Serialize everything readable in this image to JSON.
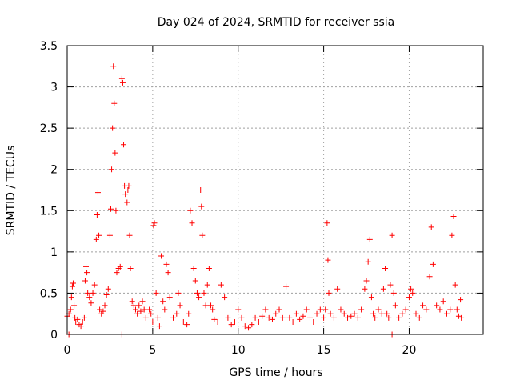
{
  "chart_data": {
    "type": "scatter",
    "title": "Day 024 of 2024, SRMTID for receiver ssia",
    "xlabel": "GPS time / hours",
    "ylabel": "SRMTID / TECUs",
    "xlim": [
      0,
      24.33
    ],
    "ylim": [
      0,
      3.5
    ],
    "x_ticks": [
      0,
      5,
      10,
      15,
      20
    ],
    "y_ticks": [
      0,
      0.5,
      1,
      1.5,
      2,
      2.5,
      3,
      3.5
    ],
    "grid": true,
    "marker": "plus",
    "series": [
      {
        "name": "SRMTID",
        "color": "#ff0000",
        "points": [
          [
            0.0,
            0.22
          ],
          [
            0.1,
            0.25
          ],
          [
            0.2,
            0.3
          ],
          [
            0.25,
            0.45
          ],
          [
            0.3,
            0.58
          ],
          [
            0.35,
            0.62
          ],
          [
            0.4,
            0.35
          ],
          [
            0.45,
            0.2
          ],
          [
            0.5,
            0.15
          ],
          [
            0.6,
            0.18
          ],
          [
            0.7,
            0.12
          ],
          [
            0.8,
            0.1
          ],
          [
            0.9,
            0.15
          ],
          [
            1.0,
            0.2
          ],
          [
            1.05,
            0.65
          ],
          [
            1.1,
            0.82
          ],
          [
            1.15,
            0.75
          ],
          [
            1.2,
            0.5
          ],
          [
            1.3,
            0.45
          ],
          [
            1.4,
            0.38
          ],
          [
            1.5,
            0.5
          ],
          [
            1.6,
            0.6
          ],
          [
            1.7,
            1.15
          ],
          [
            1.75,
            1.45
          ],
          [
            1.8,
            1.72
          ],
          [
            1.85,
            1.2
          ],
          [
            1.9,
            0.3
          ],
          [
            2.0,
            0.25
          ],
          [
            2.1,
            0.28
          ],
          [
            2.2,
            0.35
          ],
          [
            2.3,
            0.48
          ],
          [
            2.4,
            0.55
          ],
          [
            2.5,
            1.2
          ],
          [
            2.55,
            1.52
          ],
          [
            2.6,
            2.0
          ],
          [
            2.65,
            2.5
          ],
          [
            2.7,
            3.25
          ],
          [
            2.75,
            2.8
          ],
          [
            2.8,
            2.2
          ],
          [
            2.85,
            1.5
          ],
          [
            2.9,
            0.75
          ],
          [
            3.0,
            0.8
          ],
          [
            3.1,
            0.82
          ],
          [
            3.2,
            3.1
          ],
          [
            3.25,
            3.05
          ],
          [
            3.3,
            2.3
          ],
          [
            3.35,
            1.8
          ],
          [
            3.4,
            1.7
          ],
          [
            3.5,
            1.6
          ],
          [
            3.55,
            1.75
          ],
          [
            3.6,
            1.8
          ],
          [
            3.65,
            1.2
          ],
          [
            3.7,
            0.8
          ],
          [
            3.8,
            0.4
          ],
          [
            3.9,
            0.35
          ],
          [
            4.0,
            0.3
          ],
          [
            4.1,
            0.25
          ],
          [
            4.2,
            0.35
          ],
          [
            4.3,
            0.28
          ],
          [
            4.4,
            0.4
          ],
          [
            4.5,
            0.3
          ],
          [
            4.6,
            0.2
          ],
          [
            4.8,
            0.3
          ],
          [
            4.9,
            0.25
          ],
          [
            5.0,
            0.15
          ],
          [
            5.05,
            1.32
          ],
          [
            5.1,
            1.35
          ],
          [
            5.2,
            0.5
          ],
          [
            5.3,
            0.2
          ],
          [
            5.4,
            0.1
          ],
          [
            5.5,
            0.95
          ],
          [
            5.6,
            0.4
          ],
          [
            5.7,
            0.3
          ],
          [
            5.8,
            0.85
          ],
          [
            5.9,
            0.75
          ],
          [
            6.0,
            0.45
          ],
          [
            6.2,
            0.2
          ],
          [
            6.4,
            0.25
          ],
          [
            6.5,
            0.5
          ],
          [
            6.6,
            0.35
          ],
          [
            6.8,
            0.15
          ],
          [
            7.0,
            0.12
          ],
          [
            7.1,
            0.25
          ],
          [
            7.2,
            1.5
          ],
          [
            7.3,
            1.35
          ],
          [
            7.4,
            0.8
          ],
          [
            7.5,
            0.65
          ],
          [
            7.6,
            0.5
          ],
          [
            7.7,
            0.45
          ],
          [
            7.8,
            1.75
          ],
          [
            7.85,
            1.55
          ],
          [
            7.9,
            1.2
          ],
          [
            8.0,
            0.5
          ],
          [
            8.1,
            0.35
          ],
          [
            8.2,
            0.6
          ],
          [
            8.3,
            0.8
          ],
          [
            8.4,
            0.35
          ],
          [
            8.5,
            0.3
          ],
          [
            8.6,
            0.18
          ],
          [
            8.8,
            0.15
          ],
          [
            9.0,
            0.6
          ],
          [
            9.2,
            0.45
          ],
          [
            9.4,
            0.2
          ],
          [
            9.6,
            0.12
          ],
          [
            9.8,
            0.15
          ],
          [
            10.0,
            0.3
          ],
          [
            10.2,
            0.2
          ],
          [
            10.4,
            0.1
          ],
          [
            10.6,
            0.08
          ],
          [
            10.8,
            0.12
          ],
          [
            11.0,
            0.2
          ],
          [
            11.2,
            0.15
          ],
          [
            11.4,
            0.22
          ],
          [
            11.6,
            0.3
          ],
          [
            11.8,
            0.2
          ],
          [
            12.0,
            0.18
          ],
          [
            12.2,
            0.25
          ],
          [
            12.4,
            0.3
          ],
          [
            12.6,
            0.2
          ],
          [
            12.8,
            0.58
          ],
          [
            13.0,
            0.2
          ],
          [
            13.2,
            0.15
          ],
          [
            13.4,
            0.25
          ],
          [
            13.6,
            0.18
          ],
          [
            13.8,
            0.22
          ],
          [
            14.0,
            0.3
          ],
          [
            14.2,
            0.2
          ],
          [
            14.4,
            0.15
          ],
          [
            14.6,
            0.25
          ],
          [
            14.8,
            0.3
          ],
          [
            15.0,
            0.2
          ],
          [
            15.1,
            0.3
          ],
          [
            15.2,
            1.35
          ],
          [
            15.25,
            0.9
          ],
          [
            15.3,
            0.5
          ],
          [
            15.4,
            0.25
          ],
          [
            15.6,
            0.2
          ],
          [
            15.8,
            0.55
          ],
          [
            16.0,
            0.3
          ],
          [
            16.2,
            0.25
          ],
          [
            16.4,
            0.2
          ],
          [
            16.6,
            0.22
          ],
          [
            16.8,
            0.25
          ],
          [
            17.0,
            0.2
          ],
          [
            17.2,
            0.3
          ],
          [
            17.4,
            0.55
          ],
          [
            17.5,
            0.65
          ],
          [
            17.6,
            0.88
          ],
          [
            17.7,
            1.15
          ],
          [
            17.8,
            0.45
          ],
          [
            17.9,
            0.25
          ],
          [
            18.0,
            0.2
          ],
          [
            18.2,
            0.3
          ],
          [
            18.4,
            0.25
          ],
          [
            18.5,
            0.55
          ],
          [
            18.6,
            0.8
          ],
          [
            18.7,
            0.25
          ],
          [
            18.8,
            0.2
          ],
          [
            18.9,
            0.6
          ],
          [
            19.0,
            1.2
          ],
          [
            19.1,
            0.5
          ],
          [
            19.2,
            0.35
          ],
          [
            19.4,
            0.2
          ],
          [
            19.6,
            0.25
          ],
          [
            19.8,
            0.3
          ],
          [
            20.0,
            0.45
          ],
          [
            20.1,
            0.55
          ],
          [
            20.2,
            0.5
          ],
          [
            20.4,
            0.25
          ],
          [
            20.6,
            0.2
          ],
          [
            20.8,
            0.35
          ],
          [
            21.0,
            0.3
          ],
          [
            21.2,
            0.7
          ],
          [
            21.3,
            1.3
          ],
          [
            21.4,
            0.85
          ],
          [
            21.6,
            0.35
          ],
          [
            21.8,
            0.3
          ],
          [
            22.0,
            0.4
          ],
          [
            22.2,
            0.25
          ],
          [
            22.4,
            0.3
          ],
          [
            22.5,
            1.2
          ],
          [
            22.6,
            1.43
          ],
          [
            22.7,
            0.6
          ],
          [
            22.8,
            0.3
          ],
          [
            22.9,
            0.22
          ],
          [
            23.0,
            0.42
          ],
          [
            23.05,
            0.2
          ],
          [
            0.1,
            0.0
          ],
          [
            3.2,
            0.0
          ],
          [
            19.0,
            0.0
          ]
        ]
      }
    ]
  }
}
